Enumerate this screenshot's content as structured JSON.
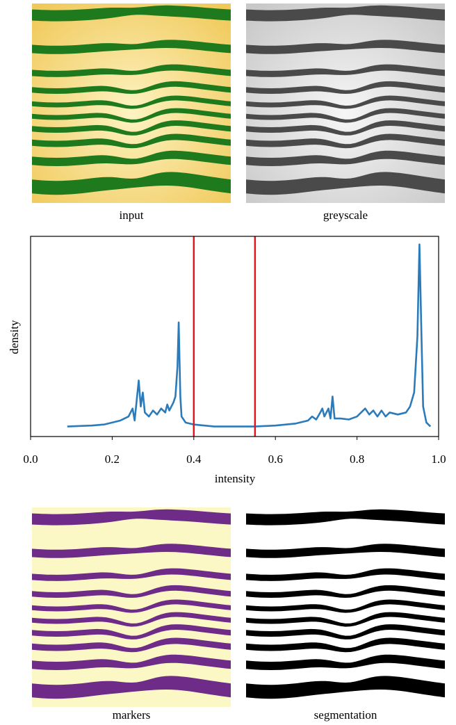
{
  "panels": [
    "input",
    "greyscale",
    "markers",
    "segmentation"
  ],
  "chart_data": {
    "type": "line",
    "xlabel": "intensity",
    "ylabel": "density",
    "xlim": [
      0,
      1
    ],
    "ylim": [
      0,
      1
    ],
    "xticks": [
      {
        "value": 0,
        "label": "0.0"
      },
      {
        "value": 0.2,
        "label": "0.2"
      },
      {
        "value": 0.4,
        "label": "0.4"
      },
      {
        "value": 0.6,
        "label": "0.6"
      },
      {
        "value": 0.8,
        "label": "0.8"
      },
      {
        "value": 1,
        "label": "1.0"
      }
    ],
    "vlines": [
      {
        "value": 0.4,
        "color": "#e8141b"
      },
      {
        "value": 0.55,
        "color": "#e8141b"
      }
    ],
    "x": [
      0.09,
      0.15,
      0.18,
      0.2,
      0.22,
      0.24,
      0.25,
      0.255,
      0.26,
      0.265,
      0.27,
      0.275,
      0.28,
      0.29,
      0.3,
      0.31,
      0.32,
      0.33,
      0.335,
      0.34,
      0.35,
      0.355,
      0.36,
      0.363,
      0.367,
      0.37,
      0.38,
      0.4,
      0.45,
      0.5,
      0.55,
      0.6,
      0.65,
      0.68,
      0.69,
      0.7,
      0.71,
      0.715,
      0.72,
      0.73,
      0.735,
      0.74,
      0.745,
      0.76,
      0.78,
      0.8,
      0.81,
      0.82,
      0.83,
      0.84,
      0.85,
      0.86,
      0.87,
      0.88,
      0.9,
      0.92,
      0.93,
      0.94,
      0.948,
      0.953,
      0.958,
      0.962,
      0.97,
      0.98
    ],
    "series": [
      {
        "color": "#2b7bba",
        "values": [
          0.05,
          0.055,
          0.06,
          0.07,
          0.08,
          0.1,
          0.14,
          0.08,
          0.18,
          0.28,
          0.15,
          0.22,
          0.12,
          0.1,
          0.13,
          0.11,
          0.14,
          0.12,
          0.16,
          0.13,
          0.17,
          0.2,
          0.35,
          0.57,
          0.2,
          0.1,
          0.07,
          0.06,
          0.05,
          0.05,
          0.05,
          0.055,
          0.065,
          0.08,
          0.1,
          0.085,
          0.12,
          0.14,
          0.1,
          0.14,
          0.09,
          0.2,
          0.09,
          0.09,
          0.085,
          0.1,
          0.12,
          0.14,
          0.11,
          0.13,
          0.1,
          0.13,
          0.1,
          0.12,
          0.11,
          0.12,
          0.15,
          0.22,
          0.5,
          0.96,
          0.5,
          0.15,
          0.07,
          0.05
        ]
      }
    ]
  }
}
